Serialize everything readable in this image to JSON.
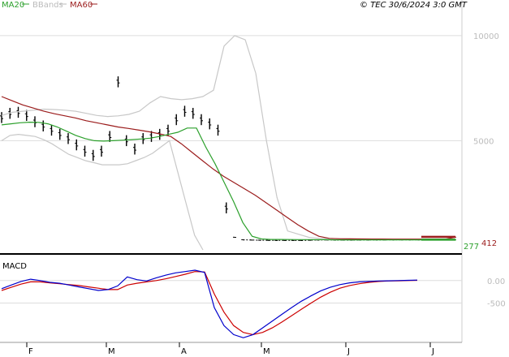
{
  "header": {
    "legend": [
      {
        "label": "MA20",
        "color": "#2ca02c"
      },
      {
        "label": "BBands",
        "color": "#bbbbbb"
      },
      {
        "label": "MA60",
        "color": "#9b1c1c"
      }
    ],
    "source": "© TEC 30/6/2024 3:0 GMT"
  },
  "chart_data": [
    {
      "type": "line",
      "series_names": [
        "MA20",
        "BBands",
        "MA60"
      ],
      "x_ticks": [
        "F",
        "M",
        "A",
        "M",
        "J",
        "J"
      ],
      "y_ticks": [
        {
          "value": 10000,
          "label": "10000"
        },
        {
          "value": 5000,
          "label": "5000"
        }
      ],
      "ylim": [
        -200,
        11000
      ],
      "price_labels": [
        {
          "label": "277",
          "value": 277,
          "color": "#2ca02c"
        },
        {
          "label": "412",
          "value": 412,
          "color": "#9b1c1c"
        }
      ],
      "price": [
        6100,
        6300,
        6350,
        6200,
        5900,
        5700,
        5500,
        5300,
        5100,
        4800,
        4500,
        4300,
        4500,
        5200,
        7800,
        5000,
        4600,
        5100,
        5200,
        5300,
        5500,
        6000,
        6400,
        6300,
        6000,
        5800,
        5500,
        1800,
        400,
        280,
        270,
        260,
        255,
        250,
        250,
        250,
        248,
        260,
        270,
        275,
        270,
        268,
        265,
        270,
        272,
        275,
        276,
        277,
        277,
        277,
        277,
        277,
        277
      ],
      "ma20": [
        5750,
        5800,
        5850,
        5880,
        5870,
        5800,
        5650,
        5450,
        5250,
        5100,
        5000,
        4980,
        5000,
        5020,
        5050,
        5080,
        5120,
        5200,
        5300,
        5400,
        5600,
        5600,
        4700,
        3900,
        3000,
        2100,
        1100,
        450,
        320,
        300,
        300,
        295,
        290,
        290,
        285,
        285,
        280,
        280,
        280,
        280,
        280,
        278,
        278,
        277,
        277,
        277,
        277,
        277,
        277,
        277
      ],
      "ma60": [
        7100,
        6900,
        6700,
        6550,
        6400,
        6280,
        6180,
        6080,
        5950,
        5850,
        5750,
        5650,
        5580,
        5500,
        5420,
        5320,
        5200,
        4850,
        4450,
        4050,
        3650,
        3300,
        3000,
        2700,
        2400,
        2050,
        1700,
        1350,
        1000,
        700,
        450,
        350,
        330,
        325,
        320,
        318,
        318,
        315,
        313,
        315,
        315,
        315,
        313,
        412
      ],
      "bbands_upper": [
        6200,
        6350,
        6400,
        6450,
        6500,
        6480,
        6450,
        6400,
        6300,
        6200,
        6150,
        6180,
        6250,
        6400,
        6800,
        7100,
        7000,
        6950,
        7000,
        7100,
        7400,
        9500,
        10000,
        9800,
        8200,
        5000,
        2300,
        700,
        550,
        400,
        350,
        340,
        330,
        320,
        310,
        300,
        300,
        300,
        300,
        300,
        300,
        300,
        300
      ],
      "bbands_lower": [
        5000,
        5250,
        5300,
        5250,
        5200,
        5050,
        4850,
        4600,
        4350,
        4200,
        4050,
        3950,
        3850,
        3850,
        3850,
        3900,
        4050,
        4200,
        4400,
        4700,
        5000,
        3500,
        2000,
        500,
        -200
      ],
      "macd_ylim": [
        -1300,
        500
      ],
      "macd_ticks": [
        {
          "value": 0,
          "label": "0.00"
        },
        {
          "value": -500,
          "label": "-500"
        }
      ],
      "macd": [
        -180,
        -100,
        -20,
        30,
        0,
        -40,
        -60,
        -100,
        -140,
        -180,
        -220,
        -200,
        -120,
        80,
        20,
        -10,
        60,
        120,
        170,
        200,
        230,
        180,
        -600,
        -1000,
        -1200,
        -1270,
        -1200,
        -1050,
        -900,
        -750,
        -600,
        -460,
        -340,
        -230,
        -150,
        -90,
        -50,
        -30,
        -20,
        -10,
        -5,
        0,
        5,
        10
      ],
      "signal": [
        -220,
        -150,
        -80,
        -30,
        -30,
        -50,
        -70,
        -90,
        -110,
        -140,
        -170,
        -200,
        -200,
        -100,
        -60,
        -30,
        0,
        40,
        90,
        140,
        200,
        190,
        -300,
        -700,
        -1000,
        -1150,
        -1200,
        -1150,
        -1050,
        -920,
        -780,
        -640,
        -500,
        -370,
        -260,
        -170,
        -110,
        -70,
        -40,
        -20,
        -10,
        -5,
        0,
        5
      ]
    }
  ]
}
